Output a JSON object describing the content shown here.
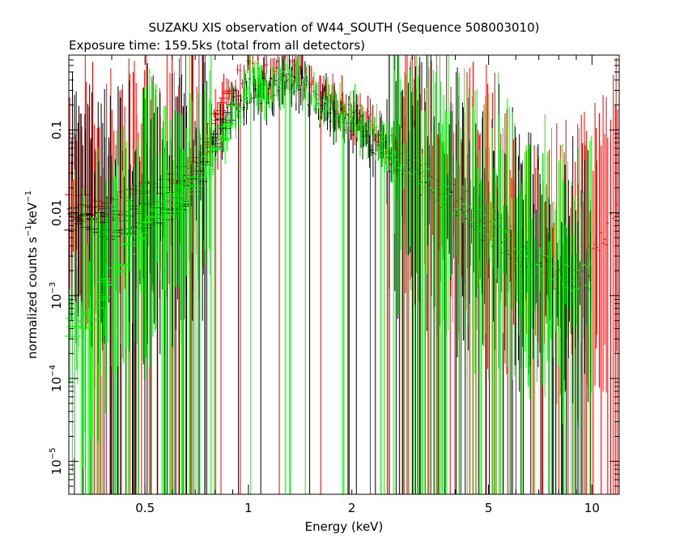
{
  "chart_data": {
    "type": "scatter",
    "title": "SUZAKU XIS observation of W44_SOUTH (Sequence 508003010)",
    "subtitle": "Exposure time: 159.5ks (total from all detectors)",
    "xlabel": "Energy (keV)",
    "ylabel_main": "normalized counts s",
    "ylabel_unit": "keV",
    "ylabel_sup": "−1",
    "x_scale": "log",
    "y_scale": "log",
    "xlim": [
      0.3,
      12
    ],
    "ylim": [
      4e-06,
      0.8
    ],
    "x_ticks": [
      {
        "value": 0.5,
        "label": "0.5"
      },
      {
        "value": 1,
        "label": "1"
      },
      {
        "value": 2,
        "label": "2"
      },
      {
        "value": 5,
        "label": "5"
      },
      {
        "value": 10,
        "label": "10"
      }
    ],
    "y_ticks": [
      {
        "value": 0.1,
        "label": "0.1",
        "label_type": "plain"
      },
      {
        "value": 0.01,
        "label": "0.01",
        "label_type": "plain"
      },
      {
        "value": 0.001,
        "base": "10",
        "exp": "−3",
        "label_type": "power"
      },
      {
        "value": 0.0001,
        "base": "10",
        "exp": "−4",
        "label_type": "power"
      },
      {
        "value": 1e-05,
        "base": "10",
        "exp": "−5",
        "label_type": "power"
      }
    ],
    "series": [
      {
        "color": "#ff0000",
        "x": [
          0.3,
          0.35,
          0.4,
          0.45,
          0.5,
          0.55,
          0.6,
          0.65,
          0.7,
          0.75,
          0.8,
          0.85,
          0.9,
          0.95,
          1.0,
          1.05,
          1.1,
          1.2,
          1.3,
          1.4,
          1.5,
          1.6,
          1.7,
          1.8,
          1.9,
          2.0,
          2.2,
          2.4,
          2.6,
          2.8,
          3.0,
          3.5,
          4.0,
          4.5,
          5.0,
          5.5,
          6.0,
          6.5,
          7.0,
          7.5,
          8.0,
          8.5,
          9.0,
          9.5,
          10.0,
          10.5,
          11.0,
          11.5,
          12.0
        ],
        "y": [
          0.012,
          0.011,
          0.012,
          0.014,
          0.016,
          0.018,
          0.024,
          0.03,
          0.045,
          0.07,
          0.12,
          0.2,
          0.3,
          0.4,
          0.5,
          0.48,
          0.4,
          0.45,
          0.55,
          0.5,
          0.35,
          0.25,
          0.22,
          0.2,
          0.2,
          0.18,
          0.12,
          0.08,
          0.06,
          0.05,
          0.04,
          0.025,
          0.016,
          0.011,
          0.008,
          0.006,
          0.0045,
          0.0035,
          0.0028,
          0.0024,
          0.0022,
          0.0022,
          0.0024,
          0.0028,
          0.0035,
          0.0045,
          0.006,
          0.008,
          0.01
        ]
      },
      {
        "color": "#000000",
        "x": [
          0.3,
          0.35,
          0.4,
          0.45,
          0.5,
          0.55,
          0.6,
          0.65,
          0.7,
          0.75,
          0.8,
          0.85,
          0.9,
          0.95,
          1.0,
          1.05,
          1.1,
          1.2,
          1.3,
          1.4,
          1.5,
          1.6,
          1.7,
          1.8,
          1.9,
          2.0,
          2.2,
          2.4,
          2.6,
          2.8,
          3.0,
          3.5,
          4.0,
          4.5,
          5.0,
          5.5,
          6.0,
          6.5,
          7.0,
          7.5,
          8.0,
          8.5,
          9.0,
          9.5,
          10.0
        ],
        "y": [
          0.008,
          0.007,
          0.007,
          0.008,
          0.009,
          0.01,
          0.013,
          0.017,
          0.025,
          0.04,
          0.07,
          0.11,
          0.17,
          0.23,
          0.28,
          0.3,
          0.28,
          0.32,
          0.4,
          0.38,
          0.28,
          0.2,
          0.18,
          0.16,
          0.15,
          0.13,
          0.09,
          0.06,
          0.045,
          0.035,
          0.028,
          0.018,
          0.012,
          0.008,
          0.006,
          0.0045,
          0.0034,
          0.0027,
          0.0022,
          0.0018,
          0.0016,
          0.0015,
          0.0015,
          0.0016,
          0.0018
        ]
      },
      {
        "color": "#00ff00",
        "x": [
          0.3,
          0.35,
          0.4,
          0.45,
          0.5,
          0.55,
          0.6,
          0.65,
          0.7,
          0.75,
          0.8,
          0.85,
          0.9,
          0.95,
          1.0,
          1.05,
          1.1,
          1.2,
          1.3,
          1.4,
          1.5,
          1.6,
          1.7,
          1.8,
          1.9,
          2.0,
          2.2,
          2.4,
          2.6,
          2.8,
          3.0,
          3.5,
          4.0,
          4.5,
          5.0,
          5.5,
          6.0,
          6.5,
          7.0,
          7.5,
          8.0,
          8.5,
          9.0,
          9.5,
          10.0
        ],
        "y": [
          0.0004,
          0.0005,
          0.002,
          0.004,
          0.007,
          0.009,
          0.012,
          0.015,
          0.022,
          0.035,
          0.06,
          0.1,
          0.15,
          0.22,
          0.3,
          0.32,
          0.3,
          0.36,
          0.45,
          0.42,
          0.3,
          0.22,
          0.2,
          0.18,
          0.17,
          0.15,
          0.1,
          0.07,
          0.05,
          0.04,
          0.032,
          0.02,
          0.013,
          0.009,
          0.0065,
          0.005,
          0.0037,
          0.0029,
          0.0024,
          0.002,
          0.0018,
          0.0017,
          0.0017,
          0.0018,
          0.002
        ]
      }
    ]
  }
}
